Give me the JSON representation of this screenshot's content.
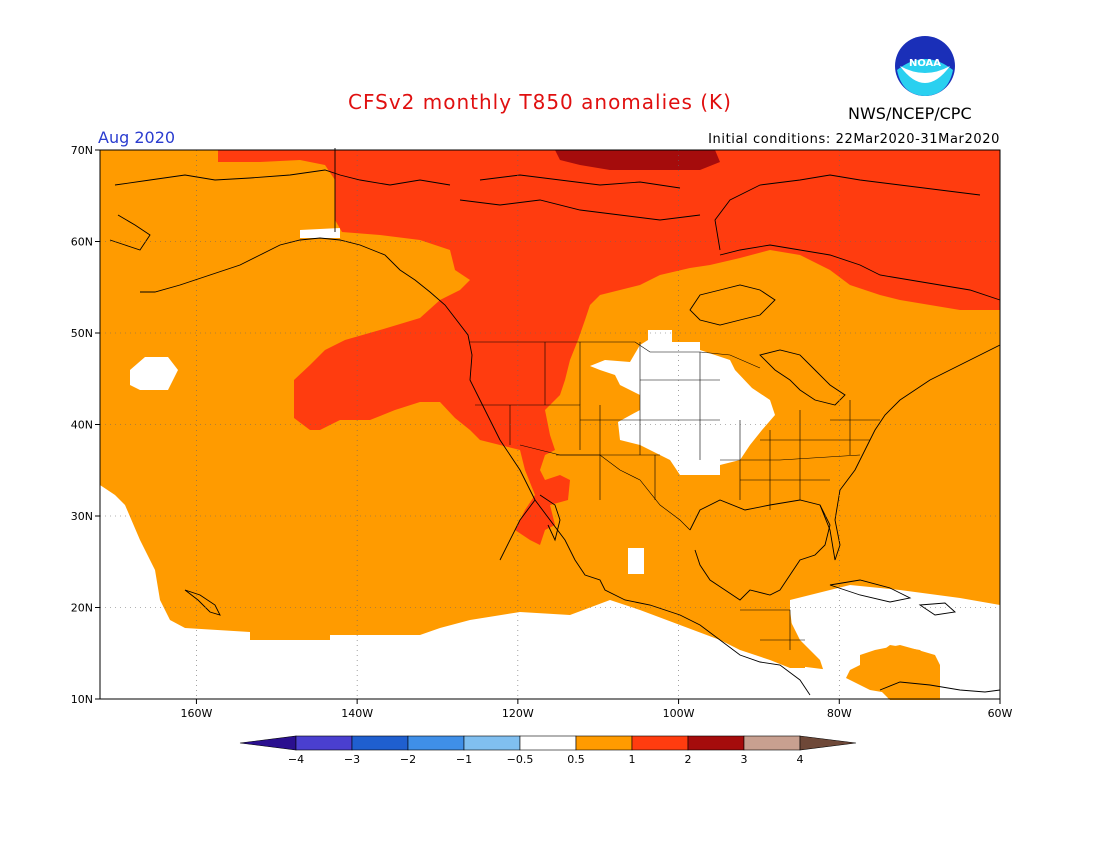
{
  "header": {
    "title": "CFSv2 monthly T850 anomalies (K)",
    "month": "Aug 2020",
    "agency": "NWS/NCEP/CPC",
    "initial_conditions": "Initial conditions: 22Mar2020-31Mar2020",
    "logo_text": "NOAA"
  },
  "map": {
    "lon_range": [
      -172,
      -60
    ],
    "lat_range": [
      10,
      70
    ],
    "lat_ticks": [
      "10N",
      "20N",
      "30N",
      "40N",
      "50N",
      "60N",
      "70N"
    ],
    "lon_ticks": [
      "160W",
      "140W",
      "120W",
      "100W",
      "80W",
      "60W"
    ],
    "background_category": "0.5 to 1"
  },
  "legend": {
    "labels": [
      "-4",
      "-3",
      "-2",
      "-1",
      "-0.5",
      "0.5",
      "1",
      "2",
      "3",
      "4"
    ],
    "colors": [
      "#2a0f8f",
      "#4a3fcf",
      "#1f5fcf",
      "#3f8fe8",
      "#80bff0",
      "#ffffff",
      "#ff9b00",
      "#ff3c0f",
      "#a50c0c",
      "#c8a090",
      "#6e4838"
    ]
  },
  "colors": {
    "orange": "#ff9b00",
    "red": "#ff3c0f",
    "darkred": "#a50c0c",
    "white": "#ffffff",
    "coast": "#000000",
    "title": "#e01010",
    "month": "#2a3ccf"
  }
}
